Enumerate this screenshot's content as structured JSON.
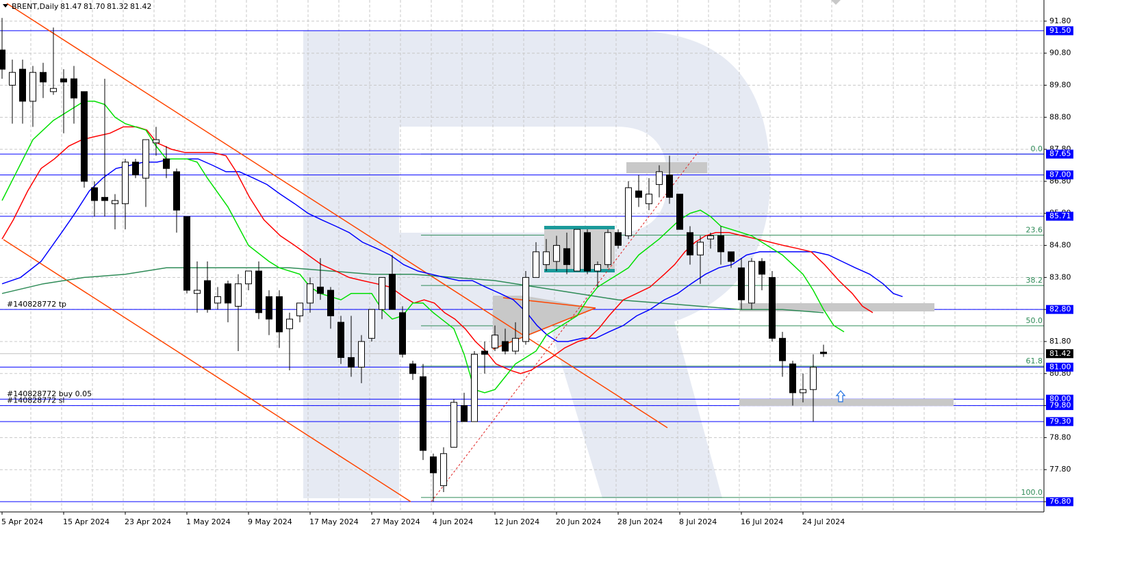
{
  "chart_data": {
    "type": "candlestick",
    "symbol": "BRENT,Daily",
    "ohlc_labels": [
      "81.47",
      "81.70",
      "81.32",
      "81.42"
    ],
    "categories": [
      "5 Apr 2024",
      null,
      null,
      null,
      null,
      null,
      "15 Apr 2024",
      null,
      null,
      null,
      null,
      null,
      "23 Apr 2024",
      null,
      null,
      null,
      null,
      null,
      "1 May 2024",
      null,
      null,
      null,
      null,
      null,
      "9 May 2024",
      null,
      null,
      null,
      null,
      null,
      "17 May 2024",
      null,
      null,
      null,
      null,
      null,
      "27 May 2024",
      null,
      null,
      null,
      null,
      null,
      "4 Jun 2024",
      null,
      null,
      null,
      null,
      null,
      "12 Jun 2024",
      null,
      null,
      null,
      null,
      null,
      "20 Jun 2024",
      null,
      null,
      null,
      null,
      null,
      "28 Jun 2024",
      null,
      null,
      null,
      null,
      null,
      "8 Jul 2024",
      null,
      null,
      null,
      null,
      null,
      "16 Jul 2024",
      null,
      null,
      null,
      null,
      null,
      "24 Jul 2024",
      null,
      null
    ],
    "open": [
      90.9,
      89.8,
      90.3,
      89.3,
      90.2,
      89.6,
      90.0,
      90.0,
      89.6,
      86.6,
      86.3,
      86.1,
      86.1,
      87.4,
      86.9,
      88.0,
      87.5,
      87.1,
      85.7,
      83.3,
      83.7,
      83.0,
      83.6,
      82.9,
      83.6,
      84.0,
      83.2,
      83.2,
      82.2,
      82.6,
      83.0,
      83.5,
      83.4,
      82.4,
      81.3,
      81.0,
      81.9,
      82.8,
      83.9,
      82.7,
      81.1,
      80.7,
      78.2,
      77.3,
      78.5,
      79.8,
      79.3,
      81.5,
      81.6,
      81.8,
      81.5,
      81.8,
      83.8,
      84.2,
      84.3,
      84.7,
      84.0,
      85.2,
      84.0,
      84.2,
      85.2,
      85.1,
      86.5,
      86.1,
      86.7,
      87.0,
      86.4,
      85.2,
      84.5,
      85.0,
      85.1,
      84.6,
      84.1,
      83.0,
      84.3,
      83.8,
      81.9,
      81.1,
      80.2,
      80.3,
      81.47
    ],
    "high": [
      91.9,
      90.6,
      90.6,
      90.4,
      90.5,
      91.6,
      90.3,
      90.4,
      89.6,
      86.8,
      90.0,
      86.4,
      87.5,
      87.5,
      88.1,
      88.5,
      87.9,
      87.2,
      85.7,
      84.3,
      84.3,
      83.5,
      83.7,
      83.9,
      84.0,
      84.3,
      83.4,
      83.4,
      82.7,
      83.0,
      83.8,
      84.4,
      83.5,
      82.6,
      82.6,
      82.0,
      82.8,
      83.8,
      84.5,
      82.9,
      81.2,
      81.1,
      78.3,
      78.5,
      80.0,
      80.2,
      81.5,
      81.8,
      82.3,
      82.2,
      82.4,
      84.0,
      84.9,
      85.0,
      85.1,
      85.2,
      85.3,
      85.3,
      84.3,
      85.3,
      85.3,
      86.8,
      87.0,
      86.9,
      87.3,
      87.6,
      86.4,
      85.4,
      85.1,
      85.2,
      85.4,
      84.6,
      84.4,
      84.4,
      84.4,
      84.0,
      82.1,
      81.2,
      80.8,
      81.4,
      81.7
    ],
    "low": [
      90.0,
      88.6,
      88.6,
      88.5,
      89.4,
      89.5,
      88.3,
      88.6,
      86.6,
      85.7,
      85.7,
      85.3,
      85.3,
      86.9,
      86.0,
      87.6,
      86.9,
      85.2,
      83.3,
      82.7,
      82.7,
      82.8,
      82.4,
      81.5,
      83.4,
      82.5,
      82.0,
      81.6,
      80.9,
      82.4,
      82.7,
      83.1,
      82.2,
      81.1,
      80.7,
      80.5,
      81.8,
      82.5,
      82.8,
      81.3,
      80.6,
      78.1,
      76.8,
      77.1,
      78.5,
      79.3,
      79.3,
      80.8,
      81.5,
      81.4,
      81.4,
      81.7,
      83.8,
      84.0,
      84.0,
      83.9,
      84.0,
      83.9,
      83.5,
      84.1,
      84.7,
      85.0,
      86.0,
      85.9,
      86.3,
      86.1,
      85.3,
      84.2,
      83.6,
      84.7,
      84.2,
      84.1,
      82.8,
      82.8,
      83.4,
      81.8,
      80.7,
      79.8,
      79.9,
      79.3,
      81.32
    ],
    "close": [
      90.3,
      90.2,
      89.3,
      90.2,
      89.9,
      89.7,
      89.9,
      89.4,
      86.8,
      86.2,
      86.2,
      86.2,
      87.4,
      87.0,
      88.1,
      88.1,
      87.2,
      85.9,
      83.4,
      83.4,
      82.8,
      83.2,
      83.0,
      83.6,
      84.0,
      82.7,
      82.5,
      82.1,
      82.5,
      83.0,
      83.6,
      83.3,
      82.6,
      81.3,
      81.0,
      81.8,
      82.8,
      83.8,
      82.8,
      81.4,
      80.8,
      78.4,
      77.7,
      78.3,
      79.9,
      79.3,
      81.4,
      81.4,
      82.0,
      81.5,
      81.9,
      83.8,
      84.6,
      84.6,
      84.8,
      84.2,
      85.3,
      84.0,
      84.2,
      85.2,
      84.8,
      86.6,
      86.3,
      86.4,
      87.1,
      86.3,
      85.3,
      84.5,
      84.9,
      85.1,
      84.6,
      84.3,
      83.1,
      84.3,
      83.9,
      81.9,
      81.2,
      80.2,
      80.3,
      81.0,
      81.42
    ],
    "bull_color": "#ffffff",
    "bear_color": "#000000",
    "series": [
      {
        "color": "#2e8b57",
        "x": [
          0,
          4,
          8,
          12,
          16,
          20,
          24,
          28,
          32,
          36,
          40,
          44,
          48,
          52,
          56,
          60,
          64,
          68,
          72,
          76,
          80
        ],
        "values": [
          83.3,
          83.6,
          83.8,
          83.9,
          84.1,
          84.1,
          84.1,
          84.1,
          84.0,
          83.9,
          83.9,
          83.8,
          83.7,
          83.5,
          83.3,
          83.1,
          83.0,
          82.9,
          82.8,
          82.8,
          82.7
        ]
      },
      {
        "color": "#0000ff",
        "x": [
          0,
          1.8,
          3.8,
          5.8,
          7.1,
          8.5,
          9.8,
          11.1,
          12.5,
          13.8,
          15.1,
          16.5,
          17.8,
          19.1,
          20.5,
          21.8,
          23.1,
          24.5,
          25.8,
          27.1,
          28.5,
          29.8,
          31.1,
          32.5,
          33.8,
          35.1,
          36.5,
          37.8,
          39.1,
          40.5,
          41.8,
          43.1,
          44.5,
          45.8,
          47.1,
          48.5,
          49.8,
          51.1,
          52.1,
          53.1,
          54.1,
          55.1,
          56.5,
          57.8,
          59.1,
          60.5,
          61.8,
          63.1,
          64.5,
          65.8,
          67.1,
          68.5,
          69.8,
          71.1,
          72.5,
          73.8,
          75.1,
          76.5,
          77.8,
          79.1,
          80.5,
          81.8,
          83.1,
          84.5,
          85.8,
          86.8,
          87.7
        ],
        "values": [
          83.6,
          83.8,
          84.3,
          85.2,
          85.8,
          86.5,
          86.9,
          87.2,
          87.3,
          87.4,
          87.4,
          87.5,
          87.5,
          87.5,
          87.3,
          87.1,
          87.1,
          86.9,
          86.7,
          86.4,
          86.1,
          85.8,
          85.6,
          85.4,
          85.2,
          84.9,
          84.7,
          84.5,
          84.2,
          84.0,
          83.9,
          83.8,
          83.7,
          83.7,
          83.5,
          83.3,
          83.1,
          82.7,
          82.3,
          82.0,
          81.8,
          81.8,
          81.9,
          81.9,
          82.1,
          82.3,
          82.6,
          82.8,
          83.1,
          83.3,
          83.6,
          83.9,
          84.1,
          84.2,
          84.5,
          84.6,
          84.6,
          84.6,
          84.6,
          84.6,
          84.5,
          84.3,
          84.1,
          83.9,
          83.6,
          83.3,
          83.2
        ]
      },
      {
        "color": "#ff0000",
        "x": [
          0,
          1.1,
          2.5,
          3.8,
          5.1,
          6.5,
          7.8,
          9.1,
          10.5,
          11.8,
          13.1,
          14.1,
          15.1,
          16.5,
          17.8,
          19.1,
          20.5,
          21.8,
          22.8,
          24.1,
          25.5,
          27.1,
          28.5,
          29.8,
          31.1,
          32.5,
          33.8,
          35.1,
          36.5,
          37.8,
          39.1,
          40.1,
          41.1,
          42.1,
          43.1,
          44.1,
          45.1,
          46.1,
          47.1,
          48.1,
          49.5,
          50.5,
          51.5,
          52.5,
          53.5,
          54.8,
          56.1,
          57.1,
          58.1,
          59.1,
          60.5,
          61.8,
          63.1,
          64.5,
          65.5,
          66.5,
          67.5,
          68.5,
          69.5,
          70.8,
          72.1,
          73.5,
          74.8,
          76.1,
          77.5,
          78.8,
          80.1,
          81.5,
          82.8,
          83.8,
          84.8
        ],
        "values": [
          85.0,
          85.6,
          86.5,
          87.2,
          87.5,
          87.9,
          88.1,
          88.2,
          88.3,
          88.5,
          88.5,
          88.4,
          88.0,
          87.8,
          87.7,
          87.7,
          87.7,
          87.6,
          87.1,
          86.3,
          85.6,
          85.1,
          84.8,
          84.5,
          84.2,
          84.0,
          83.8,
          83.7,
          83.6,
          83.5,
          83.2,
          83.0,
          83.1,
          83.0,
          82.7,
          82.5,
          82.2,
          81.8,
          81.5,
          81.1,
          80.9,
          80.8,
          80.9,
          81.1,
          81.3,
          81.6,
          81.8,
          81.9,
          82.2,
          82.6,
          83.1,
          83.3,
          83.5,
          83.9,
          84.2,
          84.6,
          84.9,
          85.1,
          85.2,
          85.2,
          85.1,
          85.0,
          84.9,
          84.8,
          84.7,
          84.6,
          84.2,
          83.7,
          83.3,
          82.9,
          82.7
        ]
      },
      {
        "color": "#00e000",
        "x": [
          0,
          3,
          5,
          7,
          8,
          9,
          10,
          11,
          12,
          14,
          15,
          16,
          18,
          19,
          20,
          22,
          23,
          24,
          26,
          27,
          29,
          30,
          31,
          33,
          34,
          36,
          37,
          38,
          39,
          40,
          41,
          42,
          44,
          45,
          46,
          47,
          48,
          49,
          50,
          51,
          52,
          53,
          54,
          56,
          57,
          58,
          60,
          61,
          62,
          64,
          65,
          66,
          67,
          68,
          69,
          70,
          72,
          73,
          74,
          76,
          77,
          78,
          79,
          80,
          81,
          82
        ],
        "values": [
          86.2,
          88.1,
          88.7,
          89.1,
          89.3,
          89.3,
          89.2,
          88.8,
          88.6,
          88.4,
          87.9,
          87.5,
          87.5,
          87.4,
          86.9,
          86.0,
          85.4,
          84.8,
          84.3,
          84.1,
          83.9,
          83.5,
          83.3,
          83.1,
          83.3,
          83.3,
          82.8,
          82.5,
          82.6,
          83.0,
          83.0,
          82.7,
          82.2,
          81.4,
          80.3,
          80.2,
          80.3,
          80.7,
          81.1,
          81.3,
          81.5,
          82.0,
          82.2,
          82.6,
          83.1,
          83.5,
          83.9,
          84.1,
          84.5,
          85.0,
          85.3,
          85.6,
          85.8,
          85.9,
          85.7,
          85.4,
          85.2,
          85.1,
          84.9,
          84.5,
          84.2,
          83.9,
          83.4,
          82.8,
          82.3,
          82.1
        ]
      }
    ],
    "ylim": [
      76.48,
      92.46
    ],
    "yticks": [
      {
        "value": 91.8,
        "label": "91.80"
      },
      {
        "value": 90.8,
        "label": "90.80"
      },
      {
        "value": 89.8,
        "label": "89.80"
      },
      {
        "value": 88.8,
        "label": "88.80"
      },
      {
        "value": 87.8,
        "label": "87.80"
      },
      {
        "value": 86.8,
        "label": "86.80"
      },
      {
        "value": 85.8,
        "label": "85.80"
      },
      {
        "value": 84.8,
        "label": "84.80"
      },
      {
        "value": 83.8,
        "label": "83.80"
      },
      {
        "value": 82.8,
        "label": "82.80"
      },
      {
        "value": 81.8,
        "label": "81.80"
      },
      {
        "value": 80.8,
        "label": "80.80"
      },
      {
        "value": 79.8,
        "label": "79.80"
      },
      {
        "value": 78.8,
        "label": "78.80"
      },
      {
        "value": 77.8,
        "label": "77.80"
      },
      {
        "value": 76.8,
        "label": "76.80"
      }
    ],
    "grid": true,
    "hline_color": "#0000ff",
    "hlines": [
      {
        "value": 91.5,
        "label": "91.50"
      },
      {
        "value": 87.65,
        "label": "87.65"
      },
      {
        "value": 87.0,
        "label": "87.00"
      },
      {
        "value": 85.71,
        "label": "85.71"
      },
      {
        "value": 82.8,
        "label": "82.80",
        "note": "#140828772 tp"
      },
      {
        "value": 81.0,
        "label": "81.00"
      },
      {
        "value": 80.0,
        "label": "80.00",
        "note": "#140828772 buy 0.05"
      },
      {
        "value": 79.8,
        "label": "79.80",
        "note": "#140828772 sl"
      },
      {
        "value": 79.3,
        "label": "79.30"
      },
      {
        "value": 76.8,
        "label": "76.80"
      }
    ],
    "current_price": {
      "value": 81.42,
      "label": "81.42"
    },
    "fib_color": "#2e8b57",
    "fib_levels": [
      {
        "label": "0.0",
        "price": 87.65
      },
      {
        "label": "23.6",
        "price": 85.12
      },
      {
        "label": "38.2",
        "price": 83.55
      },
      {
        "label": "50.0",
        "price": 82.29
      },
      {
        "label": "61.8",
        "price": 81.03
      },
      {
        "label": "100.0",
        "price": 76.93
      }
    ]
  }
}
